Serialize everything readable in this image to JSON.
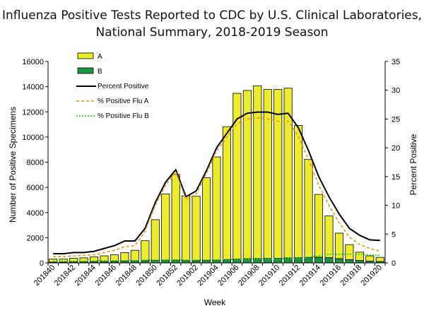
{
  "chart_data": {
    "type": "bar",
    "title_lines": [
      "Influenza Positive Tests Reported to CDC by U.S. Clinical Laboratories,",
      "National Summary, 2018-2019 Season"
    ],
    "xlabel": "Week",
    "ylabel": "Number of Positive Specimens",
    "y2label": "Percent Positive",
    "ylim": [
      0,
      16000
    ],
    "y2lim": [
      0,
      35
    ],
    "yticks": [
      "0",
      "2000",
      "4000",
      "6000",
      "8000",
      "10000",
      "12000",
      "14000",
      "16000"
    ],
    "y2ticks": [
      "0",
      "5",
      "10",
      "15",
      "20",
      "25",
      "30",
      "35"
    ],
    "categories": [
      "201840",
      "201841",
      "201842",
      "201843",
      "201844",
      "201845",
      "201846",
      "201847",
      "201848",
      "201849",
      "201850",
      "201851",
      "201852",
      "201901",
      "201902",
      "201903",
      "201904",
      "201905",
      "201906",
      "201907",
      "201908",
      "201909",
      "201910",
      "201911",
      "201912",
      "201913",
      "201914",
      "201915",
      "201916",
      "201917",
      "201918",
      "201919",
      "201920"
    ],
    "x_tick_labels": [
      "201840",
      "201842",
      "201844",
      "201846",
      "201848",
      "201850",
      "201852",
      "201902",
      "201904",
      "201906",
      "201908",
      "201910",
      "201912",
      "201914",
      "201916",
      "201918",
      "201920"
    ],
    "stacked": true,
    "grid": false,
    "legend_position": "top-left",
    "series": [
      {
        "name": "B",
        "kind": "bar",
        "axis": "left",
        "color": "#1a9641",
        "values": [
          60,
          60,
          70,
          80,
          90,
          100,
          120,
          140,
          160,
          180,
          200,
          220,
          230,
          190,
          180,
          200,
          220,
          260,
          300,
          330,
          350,
          360,
          370,
          400,
          420,
          430,
          450,
          420,
          340,
          260,
          190,
          140,
          110
        ]
      },
      {
        "name": "A",
        "kind": "bar",
        "axis": "left",
        "color": "#ecec2c",
        "values": [
          240,
          240,
          300,
          320,
          380,
          460,
          530,
          680,
          840,
          1580,
          3230,
          5260,
          6800,
          5140,
          5110,
          6560,
          8200,
          10560,
          13170,
          13370,
          13720,
          13420,
          13410,
          13480,
          10500,
          7800,
          4990,
          3310,
          2020,
          1190,
          660,
          420,
          330
        ]
      },
      {
        "name": "Percent Positive",
        "kind": "line",
        "axis": "right",
        "color": "#000000",
        "values": [
          1.6,
          1.6,
          1.8,
          1.8,
          2.0,
          2.5,
          3.0,
          3.8,
          3.8,
          6.0,
          10.5,
          14.0,
          16.2,
          11.5,
          12.5,
          16.0,
          20.0,
          22.5,
          25.0,
          26.0,
          26.2,
          26.2,
          25.8,
          26.0,
          23.5,
          19.5,
          15.0,
          11.5,
          8.5,
          6.0,
          4.8,
          4.0,
          3.9
        ]
      },
      {
        "name": "% Positive Flu A",
        "kind": "line",
        "axis": "right",
        "color": "#e8a02a",
        "dash": "4,3",
        "values": [
          1.1,
          1.1,
          1.2,
          1.3,
          1.4,
          1.8,
          2.2,
          2.8,
          3.0,
          5.5,
          10.0,
          13.5,
          15.8,
          11.0,
          12.0,
          15.5,
          19.5,
          21.8,
          24.2,
          25.0,
          25.2,
          25.0,
          24.6,
          24.6,
          22.0,
          18.0,
          13.5,
          10.0,
          7.0,
          4.5,
          3.2,
          2.5,
          2.0
        ]
      },
      {
        "name": "% Positive Flu B",
        "kind": "line",
        "axis": "right",
        "color": "#33cc33",
        "dash": "2,2",
        "values": [
          0.3,
          0.3,
          0.3,
          0.3,
          0.4,
          0.4,
          0.4,
          0.4,
          0.4,
          0.5,
          0.5,
          0.5,
          0.5,
          0.5,
          0.5,
          0.5,
          0.5,
          0.6,
          0.6,
          0.6,
          0.7,
          0.7,
          0.7,
          0.8,
          0.9,
          1.0,
          1.2,
          1.5,
          1.5,
          1.5,
          1.5,
          1.4,
          1.3
        ]
      }
    ],
    "legend": [
      "A",
      "B",
      "Percent Positive",
      "% Positive Flu A",
      "% Positive Flu B"
    ]
  }
}
